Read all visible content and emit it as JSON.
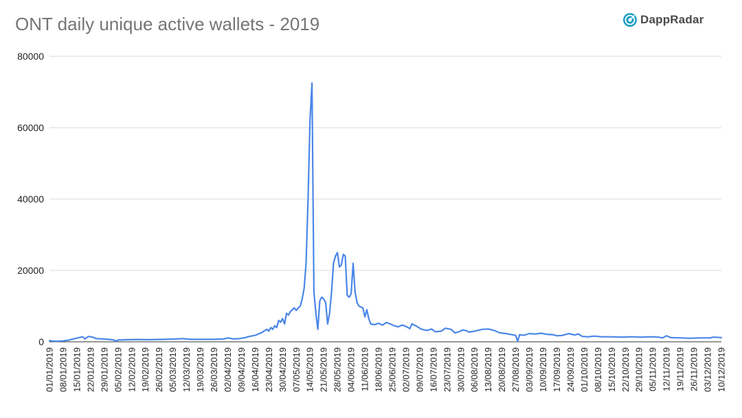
{
  "brand": {
    "name": "DappRadar",
    "logo_icon": "radar-icon",
    "accent": "#1ea0c3"
  },
  "chart_data": {
    "type": "line",
    "title": "ONT daily unique active wallets - 2019",
    "xlabel": "",
    "ylabel": "",
    "ylim": [
      0,
      80000
    ],
    "yticks": [
      0,
      20000,
      40000,
      60000,
      80000
    ],
    "grid": true,
    "legend": "none",
    "line_color": "#4a86e8",
    "xlim": [
      "01/01/2019",
      "10/12/2019"
    ],
    "x_tick_labels": [
      "01/01/2019",
      "08/01/2019",
      "15/01/2019",
      "22/01/2019",
      "29/01/2019",
      "05/02/2019",
      "12/02/2019",
      "19/02/2019",
      "26/02/2019",
      "05/03/2019",
      "12/03/2019",
      "19/03/2019",
      "26/03/2019",
      "02/04/2019",
      "09/04/2019",
      "16/04/2019",
      "23/04/2019",
      "30/04/2019",
      "07/05/2019",
      "14/05/2019",
      "21/05/2019",
      "28/05/2019",
      "04/06/2019",
      "11/06/2019",
      "18/06/2019",
      "25/06/2019",
      "02/07/2019",
      "09/07/2019",
      "16/07/2019",
      "23/07/2019",
      "30/07/2019",
      "06/08/2019",
      "13/08/2019",
      "20/08/2019",
      "27/08/2019",
      "03/09/2019",
      "10/09/2019",
      "17/09/2019",
      "24/09/2019",
      "01/10/2019",
      "08/10/2019",
      "15/10/2019",
      "22/10/2019",
      "29/10/2019",
      "05/11/2019",
      "12/11/2019",
      "19/11/2019",
      "26/11/2019",
      "03/12/2019",
      "10/12/2019"
    ],
    "series": [
      {
        "points": [
          [
            "01/01/2019",
            300
          ],
          [
            "03/01/2019",
            200
          ],
          [
            "05/01/2019",
            150
          ],
          [
            "08/01/2019",
            250
          ],
          [
            "11/01/2019",
            500
          ],
          [
            "14/01/2019",
            900
          ],
          [
            "16/01/2019",
            1200
          ],
          [
            "18/01/2019",
            1400
          ],
          [
            "19/01/2019",
            800
          ],
          [
            "21/01/2019",
            1500
          ],
          [
            "23/01/2019",
            1300
          ],
          [
            "25/01/2019",
            900
          ],
          [
            "28/01/2019",
            800
          ],
          [
            "31/01/2019",
            700
          ],
          [
            "03/02/2019",
            500
          ],
          [
            "04/02/2019",
            200
          ],
          [
            "05/02/2019",
            500
          ],
          [
            "10/02/2019",
            600
          ],
          [
            "15/02/2019",
            650
          ],
          [
            "20/02/2019",
            600
          ],
          [
            "25/02/2019",
            650
          ],
          [
            "01/03/2019",
            700
          ],
          [
            "07/03/2019",
            800
          ],
          [
            "10/03/2019",
            900
          ],
          [
            "14/03/2019",
            700
          ],
          [
            "20/03/2019",
            700
          ],
          [
            "26/03/2019",
            700
          ],
          [
            "31/03/2019",
            800
          ],
          [
            "02/04/2019",
            1100
          ],
          [
            "05/04/2019",
            800
          ],
          [
            "08/04/2019",
            900
          ],
          [
            "11/04/2019",
            1200
          ],
          [
            "13/04/2019",
            1500
          ],
          [
            "16/04/2019",
            1800
          ],
          [
            "19/04/2019",
            2500
          ],
          [
            "22/04/2019",
            3500
          ],
          [
            "23/04/2019",
            3000
          ],
          [
            "24/04/2019",
            4000
          ],
          [
            "25/04/2019",
            3500
          ],
          [
            "26/04/2019",
            4500
          ],
          [
            "27/04/2019",
            4000
          ],
          [
            "28/04/2019",
            6000
          ],
          [
            "29/04/2019",
            5500
          ],
          [
            "30/04/2019",
            6500
          ],
          [
            "01/05/2019",
            5000
          ],
          [
            "02/05/2019",
            8000
          ],
          [
            "03/05/2019",
            7500
          ],
          [
            "04/05/2019",
            8500
          ],
          [
            "06/05/2019",
            9500
          ],
          [
            "07/05/2019",
            8800
          ],
          [
            "08/05/2019",
            9500
          ],
          [
            "09/05/2019",
            10000
          ],
          [
            "10/05/2019",
            12000
          ],
          [
            "11/05/2019",
            15000
          ],
          [
            "12/05/2019",
            22000
          ],
          [
            "13/05/2019",
            40000
          ],
          [
            "14/05/2019",
            62000
          ],
          [
            "15/05/2019",
            72500
          ],
          [
            "16/05/2019",
            14000
          ],
          [
            "17/05/2019",
            8000
          ],
          [
            "18/05/2019",
            3500
          ],
          [
            "19/05/2019",
            11500
          ],
          [
            "20/05/2019",
            12500
          ],
          [
            "21/05/2019",
            12000
          ],
          [
            "22/05/2019",
            11000
          ],
          [
            "23/05/2019",
            5000
          ],
          [
            "24/05/2019",
            8000
          ],
          [
            "25/05/2019",
            14000
          ],
          [
            "26/05/2019",
            22000
          ],
          [
            "27/05/2019",
            24000
          ],
          [
            "28/05/2019",
            25000
          ],
          [
            "29/05/2019",
            21000
          ],
          [
            "30/05/2019",
            21500
          ],
          [
            "31/05/2019",
            24500
          ],
          [
            "01/06/2019",
            24000
          ],
          [
            "02/06/2019",
            13000
          ],
          [
            "03/06/2019",
            12500
          ],
          [
            "04/06/2019",
            13500
          ],
          [
            "05/06/2019",
            22000
          ],
          [
            "06/06/2019",
            14000
          ],
          [
            "07/06/2019",
            11000
          ],
          [
            "08/06/2019",
            10000
          ],
          [
            "10/06/2019",
            9500
          ],
          [
            "11/06/2019",
            7000
          ],
          [
            "12/06/2019",
            9000
          ],
          [
            "13/06/2019",
            6500
          ],
          [
            "14/06/2019",
            5000
          ],
          [
            "16/06/2019",
            4800
          ],
          [
            "18/06/2019",
            5200
          ],
          [
            "20/06/2019",
            4700
          ],
          [
            "22/06/2019",
            5400
          ],
          [
            "24/06/2019",
            5000
          ],
          [
            "26/06/2019",
            4500
          ],
          [
            "28/06/2019",
            4200
          ],
          [
            "30/06/2019",
            4700
          ],
          [
            "02/07/2019",
            4300
          ],
          [
            "04/07/2019",
            3700
          ],
          [
            "05/07/2019",
            5000
          ],
          [
            "07/07/2019",
            4500
          ],
          [
            "10/07/2019",
            3500
          ],
          [
            "13/07/2019",
            3200
          ],
          [
            "15/07/2019",
            3600
          ],
          [
            "17/07/2019",
            2800
          ],
          [
            "20/07/2019",
            3000
          ],
          [
            "22/07/2019",
            3800
          ],
          [
            "25/07/2019",
            3500
          ],
          [
            "27/07/2019",
            2500
          ],
          [
            "29/07/2019",
            2800
          ],
          [
            "31/07/2019",
            3300
          ],
          [
            "02/08/2019",
            3100
          ],
          [
            "03/08/2019",
            2700
          ],
          [
            "06/08/2019",
            3000
          ],
          [
            "10/08/2019",
            3500
          ],
          [
            "13/08/2019",
            3600
          ],
          [
            "16/08/2019",
            3200
          ],
          [
            "19/08/2019",
            2500
          ],
          [
            "22/08/2019",
            2300
          ],
          [
            "25/08/2019",
            2000
          ],
          [
            "27/08/2019",
            1800
          ],
          [
            "28/08/2019",
            100
          ],
          [
            "29/08/2019",
            2000
          ],
          [
            "31/08/2019",
            1800
          ],
          [
            "03/09/2019",
            2300
          ],
          [
            "06/09/2019",
            2200
          ],
          [
            "09/09/2019",
            2400
          ],
          [
            "12/09/2019",
            2100
          ],
          [
            "15/09/2019",
            2000
          ],
          [
            "17/09/2019",
            1700
          ],
          [
            "20/09/2019",
            1800
          ],
          [
            "23/09/2019",
            2300
          ],
          [
            "26/09/2019",
            1900
          ],
          [
            "28/09/2019",
            2200
          ],
          [
            "30/09/2019",
            1500
          ],
          [
            "03/10/2019",
            1400
          ],
          [
            "06/10/2019",
            1600
          ],
          [
            "10/10/2019",
            1400
          ],
          [
            "15/10/2019",
            1400
          ],
          [
            "20/10/2019",
            1300
          ],
          [
            "25/10/2019",
            1400
          ],
          [
            "30/10/2019",
            1300
          ],
          [
            "04/11/2019",
            1400
          ],
          [
            "08/11/2019",
            1300
          ],
          [
            "10/11/2019",
            1100
          ],
          [
            "12/11/2019",
            1700
          ],
          [
            "14/11/2019",
            1200
          ],
          [
            "19/11/2019",
            1100
          ],
          [
            "24/11/2019",
            1000
          ],
          [
            "29/11/2019",
            1100
          ],
          [
            "04/12/2019",
            1100
          ],
          [
            "06/12/2019",
            1300
          ],
          [
            "10/12/2019",
            1200
          ]
        ]
      }
    ]
  }
}
